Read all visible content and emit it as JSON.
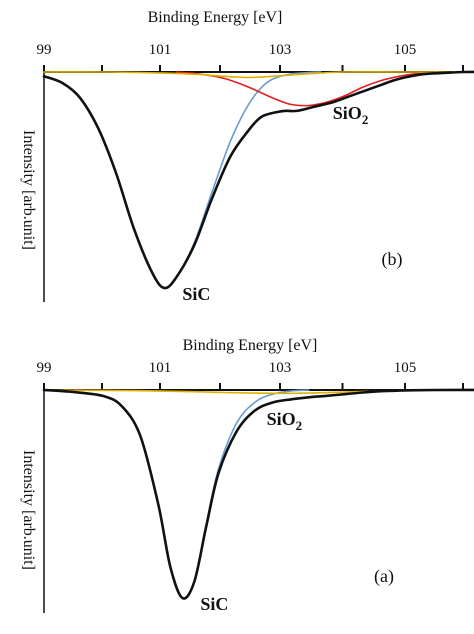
{
  "chart_data": [
    {
      "type": "line",
      "panel_label": "(b)",
      "xlabel": "Binding Energy [eV]",
      "ylabel": "Intensity [arb.unit]",
      "x_ticks": [
        "99",
        "101",
        "103",
        "105"
      ],
      "x_tick_values": [
        99,
        101,
        103,
        105
      ],
      "xlim": [
        98.9,
        106.3
      ],
      "ylim": [
        0,
        1
      ],
      "annotations": [
        {
          "text": "SiC",
          "x": 101.3,
          "y": 1.0
        },
        {
          "text": "SiO",
          "sub": "2",
          "x": 103.8,
          "y": 0.2
        }
      ],
      "series": [
        {
          "color": "#111111",
          "x": [
            99.0,
            99.3,
            99.6,
            99.9,
            100.2,
            100.5,
            100.8,
            101.0,
            101.2,
            101.5,
            101.8,
            102.1,
            102.4,
            102.6,
            102.8,
            103.0,
            103.2,
            103.5,
            103.8,
            104.1,
            104.4,
            104.6,
            104.8,
            105.0,
            105.3,
            105.6,
            106.0,
            106.3
          ],
          "y": [
            0.02,
            0.05,
            0.12,
            0.26,
            0.47,
            0.73,
            0.93,
            1.0,
            0.95,
            0.8,
            0.58,
            0.39,
            0.27,
            0.21,
            0.19,
            0.18,
            0.18,
            0.16,
            0.14,
            0.11,
            0.08,
            0.06,
            0.04,
            0.025,
            0.01,
            0.005,
            0.0,
            0.0
          ]
        },
        {
          "color": "#6a9ad4",
          "x": [
            99.0,
            99.3,
            99.6,
            99.9,
            100.2,
            100.5,
            100.8,
            101.0,
            101.2,
            101.5,
            101.8,
            102.1,
            102.4,
            102.7,
            103.0,
            103.3,
            103.6
          ],
          "y": [
            0.02,
            0.05,
            0.12,
            0.26,
            0.47,
            0.73,
            0.93,
            1.0,
            0.95,
            0.79,
            0.55,
            0.32,
            0.15,
            0.05,
            0.015,
            0.004,
            0.0
          ]
        },
        {
          "color": "#e02020",
          "x": [
            101.2,
            101.6,
            102.0,
            102.4,
            102.8,
            103.1,
            103.4,
            103.7,
            104.0,
            104.3,
            104.6,
            104.9,
            105.2,
            105.5
          ],
          "y": [
            0.0,
            0.01,
            0.03,
            0.07,
            0.12,
            0.15,
            0.155,
            0.14,
            0.11,
            0.07,
            0.04,
            0.02,
            0.007,
            0.0
          ]
        },
        {
          "color": "#e0b000",
          "x": [
            99.0,
            100.0,
            101.0,
            101.6,
            102.0,
            102.4,
            102.8,
            103.2,
            103.6,
            104.0,
            105.0,
            106.3
          ],
          "y": [
            0.0,
            0.0,
            0.005,
            0.012,
            0.02,
            0.025,
            0.02,
            0.012,
            0.005,
            0.0,
            0.0,
            0.0
          ]
        }
      ]
    },
    {
      "type": "line",
      "panel_label": "(a)",
      "xlabel": "Binding Energy [eV]",
      "ylabel": "Intensity [arb.unit]",
      "x_ticks": [
        "99",
        "101",
        "103",
        "105"
      ],
      "x_tick_values": [
        99,
        101,
        103,
        105
      ],
      "xlim": [
        98.9,
        106.3
      ],
      "ylim": [
        0,
        1
      ],
      "annotations": [
        {
          "text": "SiC",
          "x": 101.6,
          "y": 1.0
        },
        {
          "text": "SiO",
          "sub": "2",
          "x": 102.7,
          "y": 0.15
        }
      ],
      "series": [
        {
          "color": "#111111",
          "x": [
            99.0,
            99.5,
            100.0,
            100.3,
            100.6,
            100.9,
            101.1,
            101.3,
            101.5,
            101.7,
            101.9,
            102.2,
            102.5,
            102.8,
            103.1,
            103.4,
            103.7,
            104.0,
            104.3,
            104.6,
            105.0,
            105.5,
            106.3
          ],
          "y": [
            0.0,
            0.01,
            0.03,
            0.08,
            0.22,
            0.55,
            0.85,
            1.0,
            0.92,
            0.65,
            0.4,
            0.2,
            0.1,
            0.06,
            0.045,
            0.035,
            0.028,
            0.02,
            0.012,
            0.006,
            0.002,
            0.0,
            0.0
          ]
        },
        {
          "color": "#6a9ad4",
          "x": [
            99.0,
            99.5,
            100.0,
            100.3,
            100.6,
            100.9,
            101.1,
            101.3,
            101.5,
            101.7,
            101.9,
            102.2,
            102.5,
            102.8,
            103.1,
            103.4
          ],
          "y": [
            0.0,
            0.01,
            0.03,
            0.08,
            0.22,
            0.55,
            0.85,
            1.0,
            0.92,
            0.64,
            0.38,
            0.16,
            0.06,
            0.02,
            0.005,
            0.0
          ]
        },
        {
          "color": "#e0b000",
          "x": [
            99.0,
            100.5,
            101.5,
            102.0,
            102.5,
            103.0,
            103.5,
            104.0,
            104.5,
            105.0,
            106.3
          ],
          "y": [
            0.0,
            0.003,
            0.008,
            0.012,
            0.015,
            0.016,
            0.014,
            0.01,
            0.006,
            0.003,
            0.0
          ]
        }
      ]
    }
  ]
}
